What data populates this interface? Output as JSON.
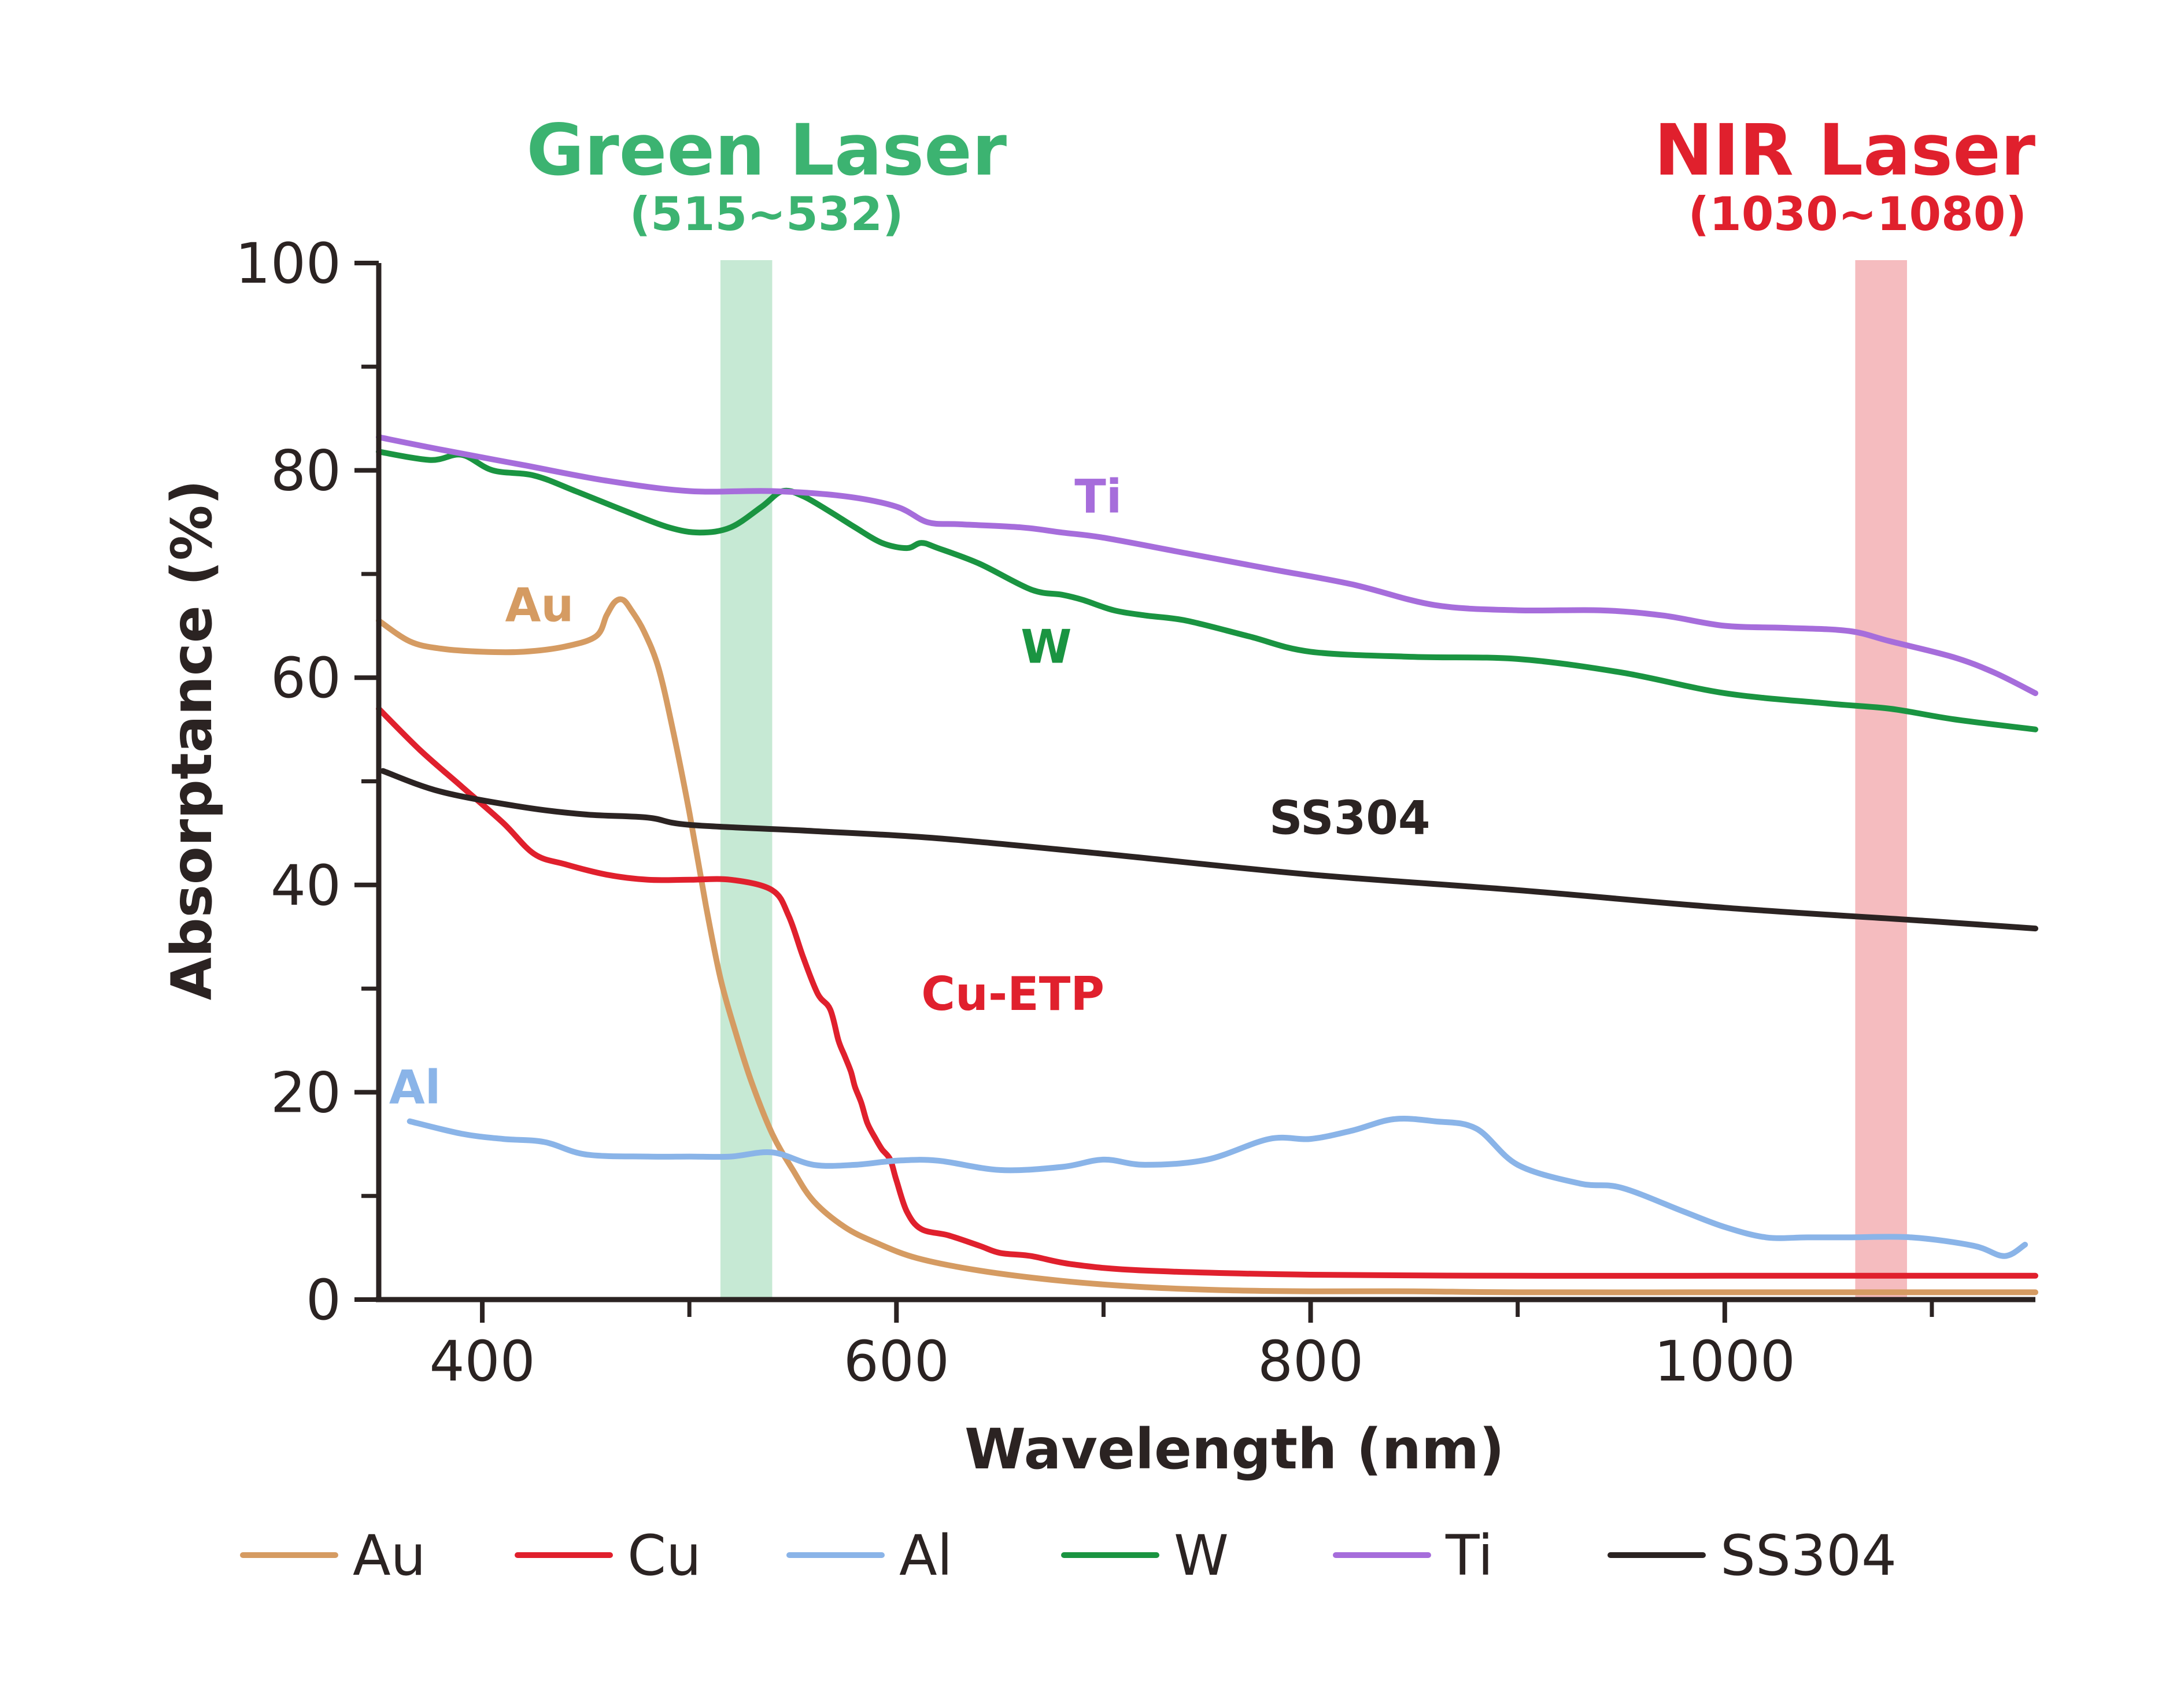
{
  "chart_data": {
    "type": "line",
    "title": "",
    "xlabel": "Wavelength (nm)",
    "ylabel": "Absorptance (%)",
    "xlim": [
      350,
      1150
    ],
    "ylim": [
      0,
      100
    ],
    "x_ticks": [
      400,
      600,
      800,
      1000
    ],
    "x_minor_ticks": [
      500,
      700,
      900,
      1100
    ],
    "y_ticks": [
      0,
      20,
      40,
      60,
      80,
      100
    ],
    "y_minor_ticks": [
      10,
      30,
      50,
      70,
      90
    ],
    "grid": false,
    "legend_position": "bottom",
    "bands": [
      {
        "name": "Green Laser",
        "range_label": "(515~532)",
        "x_start": 515,
        "x_end": 540,
        "color": "#3cb371",
        "fill": "#c6e9d4"
      },
      {
        "name": "NIR Laser",
        "range_label": "(1030~1080)",
        "x_start": 1063,
        "x_end": 1088,
        "color": "#e0202d",
        "fill": "#f5bcbf"
      }
    ],
    "series": [
      {
        "name": "Au",
        "color": "#d59b62",
        "inline_label": "Au",
        "label_at": [
          411,
          67.0
        ],
        "x": [
          350,
          365,
          380,
          400,
          420,
          440,
          455,
          460,
          464,
          468,
          472,
          478,
          485,
          492,
          500,
          508,
          515,
          522,
          530,
          540,
          550,
          560,
          575,
          590,
          610,
          640,
          680,
          720,
          760,
          800,
          850,
          900,
          1000,
          1100,
          1150
        ],
        "y": [
          65.5,
          63.5,
          62.8,
          62.5,
          62.5,
          63,
          64,
          66,
          67.3,
          67.5,
          66.5,
          64.5,
          61,
          55,
          47,
          38,
          31,
          26,
          21,
          16,
          12.5,
          9.5,
          7,
          5.5,
          4,
          2.8,
          1.8,
          1.2,
          0.9,
          0.8,
          0.8,
          0.7,
          0.7,
          0.7,
          0.7
        ]
      },
      {
        "name": "Cu",
        "color": "#e0202d",
        "inline_label": "Cu-ETP",
        "label_at": [
          612,
          29.5
        ],
        "x": [
          350,
          370,
          390,
          410,
          425,
          440,
          460,
          480,
          500,
          520,
          540,
          548,
          555,
          562,
          568,
          572,
          575,
          578,
          580,
          583,
          586,
          590,
          593,
          597,
          600,
          605,
          612,
          625,
          640,
          650,
          665,
          685,
          720,
          800,
          900,
          1000,
          1100,
          1150
        ],
        "y": [
          57,
          53,
          49.5,
          46,
          43,
          42,
          41,
          40.5,
          40.5,
          40.5,
          39.5,
          37,
          33,
          29.5,
          28,
          25,
          23.5,
          22,
          20.5,
          19,
          17,
          15.5,
          14.5,
          13.5,
          11.5,
          8.5,
          6.8,
          6.2,
          5.2,
          4.5,
          4.2,
          3.4,
          2.8,
          2.4,
          2.3,
          2.3,
          2.3,
          2.3
        ]
      },
      {
        "name": "Al",
        "color": "#8ab4e8",
        "inline_label": "Al",
        "label_at": [
          355,
          20.5
        ],
        "x": [
          365,
          390,
          410,
          430,
          450,
          480,
          500,
          520,
          540,
          560,
          580,
          600,
          620,
          650,
          680,
          700,
          720,
          750,
          780,
          800,
          820,
          840,
          860,
          880,
          900,
          930,
          950,
          980,
          1000,
          1020,
          1040,
          1060,
          1090,
          1120,
          1135,
          1145
        ],
        "y": [
          17.2,
          16,
          15.5,
          15.2,
          14,
          13.8,
          13.8,
          13.8,
          14.2,
          13,
          13,
          13.4,
          13.4,
          12.5,
          12.8,
          13.5,
          13,
          13.5,
          15.5,
          15.5,
          16.3,
          17.4,
          17.2,
          16.5,
          13,
          11.2,
          10.8,
          8.5,
          7,
          6,
          6,
          6,
          6,
          5.2,
          4.2,
          5.3
        ]
      },
      {
        "name": "W",
        "color": "#1a9441",
        "inline_label": "W",
        "label_at": [
          660,
          63.0
        ],
        "x": [
          350,
          375,
          390,
          405,
          425,
          445,
          470,
          490,
          505,
          520,
          535,
          545,
          555,
          568,
          580,
          593,
          605,
          612,
          620,
          640,
          665,
          680,
          690,
          705,
          720,
          740,
          770,
          800,
          850,
          900,
          950,
          1000,
          1050,
          1080,
          1110,
          1150
        ],
        "y": [
          81.8,
          81,
          81.5,
          80,
          79.5,
          78,
          76,
          74.5,
          74,
          74.5,
          76.5,
          78,
          77.5,
          76,
          74.5,
          73,
          72.5,
          73,
          72.5,
          71,
          68.5,
          68,
          67.5,
          66.5,
          66,
          65.5,
          64,
          62.5,
          62,
          61.8,
          60.5,
          58.5,
          57.5,
          57,
          56,
          55
        ]
      },
      {
        "name": "Ti",
        "color": "#a66ddb",
        "inline_label": "Ti",
        "label_at": [
          686,
          77.5
        ],
        "x": [
          350,
          380,
          420,
          460,
          500,
          540,
          575,
          600,
          615,
          630,
          660,
          680,
          700,
          740,
          780,
          820,
          860,
          900,
          940,
          970,
          1000,
          1030,
          1060,
          1080,
          1110,
          1130,
          1150
        ],
        "y": [
          83.2,
          82,
          80.5,
          79,
          78,
          78,
          77.5,
          76.5,
          75,
          74.8,
          74.5,
          74,
          73.5,
          72,
          70.5,
          69,
          67,
          66.5,
          66.5,
          66,
          65,
          64.8,
          64.5,
          63.5,
          62,
          60.5,
          58.5
        ]
      },
      {
        "name": "SS304",
        "color": "#2b2322",
        "inline_label": "SS304",
        "label_at": [
          780,
          46.5
        ],
        "x": [
          352,
          380,
          420,
          450,
          480,
          500,
          560,
          620,
          700,
          800,
          900,
          1000,
          1100,
          1150
        ],
        "y": [
          51,
          49,
          47.5,
          46.8,
          46.5,
          45.8,
          45.2,
          44.5,
          43,
          41,
          39.5,
          37.8,
          36.5,
          35.8
        ]
      }
    ]
  }
}
